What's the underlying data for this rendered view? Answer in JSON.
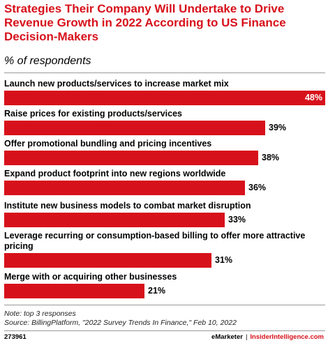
{
  "title": "Strategies Their Company Will Undertake to Drive Revenue Growth in 2022 According to US Finance Decision-Makers",
  "subtitle": "% of respondents",
  "chart_data": {
    "type": "bar",
    "orientation": "horizontal",
    "categories": [
      "Launch new products/services to increase market mix",
      "Raise prices for existing products/services",
      "Offer promotional bundling and pricing incentives",
      "Expand product footprint into new regions worldwide",
      "Institute new business models to combat market disruption",
      "Leverage recurring or consumption-based billing to offer more attractive pricing",
      "Merge with or acquiring other businesses"
    ],
    "values": [
      48,
      39,
      38,
      36,
      33,
      31,
      21
    ],
    "value_labels": [
      "48%",
      "39%",
      "38%",
      "36%",
      "33%",
      "31%",
      "21%"
    ],
    "xlim": [
      0,
      48
    ],
    "bar_color": "#d7111b",
    "grid": false
  },
  "note": "Note: top 3 responses",
  "source": "Source: BillingPlatform, \"2022 Survey Trends In Finance,\" Feb 10, 2022",
  "footer": {
    "chart_id": "273961",
    "brand": "eMarketer",
    "separator": "|",
    "site": "InsiderIntelligence.com"
  }
}
